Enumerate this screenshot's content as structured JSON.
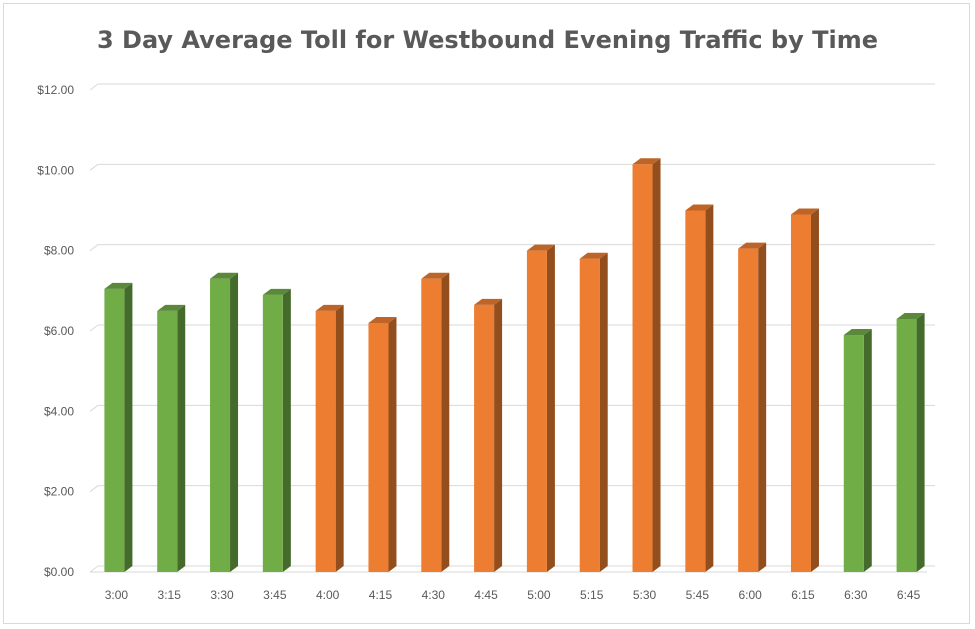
{
  "chart_data": {
    "type": "bar",
    "title": "3 Day Average Toll for Westbound Evening Traffic by Time",
    "xlabel": "",
    "ylabel": "",
    "ylim": [
      0,
      12
    ],
    "y_ticks": [
      "$0.00",
      "$2.00",
      "$4.00",
      "$6.00",
      "$8.00",
      "$10.00",
      "$12.00"
    ],
    "y_tick_values": [
      0,
      2,
      4,
      6,
      8,
      10,
      12
    ],
    "categories": [
      "3:00",
      "3:15",
      "3:30",
      "3:45",
      "4:00",
      "4:15",
      "4:30",
      "4:45",
      "5:00",
      "5:15",
      "5:30",
      "5:45",
      "6:00",
      "6:15",
      "6:30",
      "6:45"
    ],
    "values": [
      7.05,
      6.5,
      7.3,
      6.9,
      6.5,
      6.2,
      7.3,
      6.65,
      8.0,
      7.8,
      10.15,
      9.0,
      8.05,
      8.9,
      5.9,
      6.3
    ],
    "bar_colors": [
      "#70ad47",
      "#70ad47",
      "#70ad47",
      "#70ad47",
      "#ed7d31",
      "#ed7d31",
      "#ed7d31",
      "#ed7d31",
      "#ed7d31",
      "#ed7d31",
      "#ed7d31",
      "#ed7d31",
      "#ed7d31",
      "#ed7d31",
      "#70ad47",
      "#70ad47"
    ],
    "grid": true,
    "legend": "none"
  }
}
